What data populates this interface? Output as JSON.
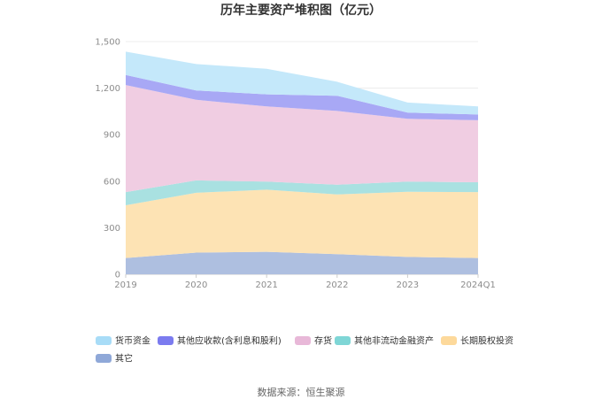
{
  "chart_data": {
    "type": "area",
    "stacked": true,
    "title": "历年主要资产堆积图（亿元）",
    "categories": [
      "2019",
      "2020",
      "2021",
      "2022",
      "2023",
      "2024Q1"
    ],
    "ylim": [
      0,
      1500
    ],
    "yticks": [
      "0",
      "300",
      "600",
      "900",
      "1,200",
      "1,500"
    ],
    "grid": true,
    "legend_position": "bottom",
    "series": [
      {
        "name": "其它",
        "color": "#aebfe0",
        "legend_color": "#8fa8d8",
        "values": [
          105,
          140,
          145,
          130,
          112,
          105
        ]
      },
      {
        "name": "长期股权投资",
        "color": "#fde3b4",
        "legend_color": "#fdd99b",
        "values": [
          340,
          385,
          400,
          385,
          420,
          425
        ]
      },
      {
        "name": "其他非流动金融资产",
        "color": "#a9e1e1",
        "legend_color": "#7fd6d6",
        "values": [
          85,
          80,
          52,
          63,
          65,
          63
        ]
      },
      {
        "name": "存货",
        "color": "#f0cde2",
        "legend_color": "#e8b8d8",
        "values": [
          690,
          520,
          485,
          475,
          405,
          400
        ]
      },
      {
        "name": "其他应收款(含利息和股利)",
        "color": "#a8a8f5",
        "legend_color": "#7b7bef",
        "values": [
          65,
          60,
          78,
          98,
          40,
          37
        ]
      },
      {
        "name": "货币资金",
        "color": "#c4e8fa",
        "legend_color": "#a8dcf7",
        "values": [
          150,
          170,
          165,
          90,
          65,
          52
        ]
      }
    ],
    "legend_order": [
      "货币资金",
      "其他应收款(含利息和股利)",
      "存货",
      "其他非流动金融资产",
      "长期股权投资",
      "其它"
    ]
  },
  "source": "数据来源：恒生聚源"
}
